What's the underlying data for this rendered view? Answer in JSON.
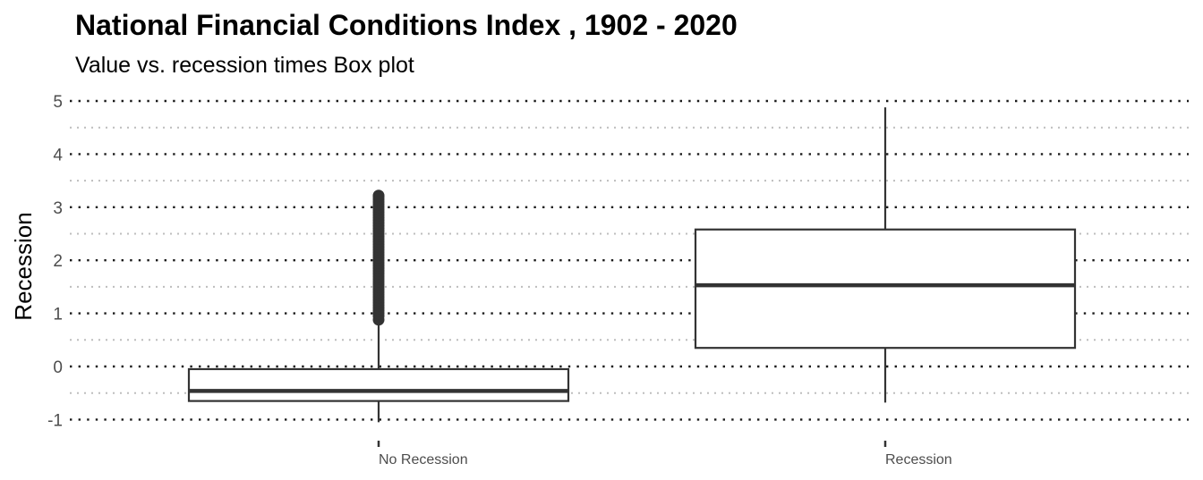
{
  "chart_data": {
    "type": "box",
    "title": "National Financial Conditions Index , 1902 - 2020",
    "subtitle": "Value vs. recession times Box plot",
    "xlabel": "",
    "ylabel": "Recession",
    "ylim": [
      -1.1,
      5.05
    ],
    "yticks": [
      "-1",
      "0",
      "1",
      "2",
      "3",
      "4",
      "5"
    ],
    "grid": "dotted horizontal major and minor",
    "legend": "none",
    "categories": [
      "No Recession",
      "Recession"
    ],
    "boxes": [
      {
        "category": "No Recession",
        "whisker_low": -1.05,
        "q1": -0.65,
        "median": -0.46,
        "q3": -0.05,
        "whisker_high": 0.85,
        "outliers": [
          0.88,
          0.95,
          1.0,
          1.05,
          1.1,
          1.15,
          1.2,
          1.25,
          1.3,
          1.35,
          1.4,
          1.45,
          1.5,
          1.55,
          1.6,
          1.65,
          1.7,
          1.75,
          1.8,
          1.85,
          1.9,
          1.95,
          2.0,
          2.05,
          2.1,
          2.15,
          2.2,
          2.25,
          2.3,
          2.35,
          2.4,
          2.45,
          2.5,
          2.55,
          2.6,
          2.65,
          2.7,
          2.75,
          2.8,
          2.85,
          2.9,
          2.95,
          3.0,
          3.05,
          3.1,
          3.15,
          3.2,
          3.22
        ]
      },
      {
        "category": "Recession",
        "whisker_low": -0.68,
        "q1": 0.35,
        "median": 1.53,
        "q3": 2.58,
        "whisker_high": 4.88,
        "outliers": []
      }
    ]
  }
}
